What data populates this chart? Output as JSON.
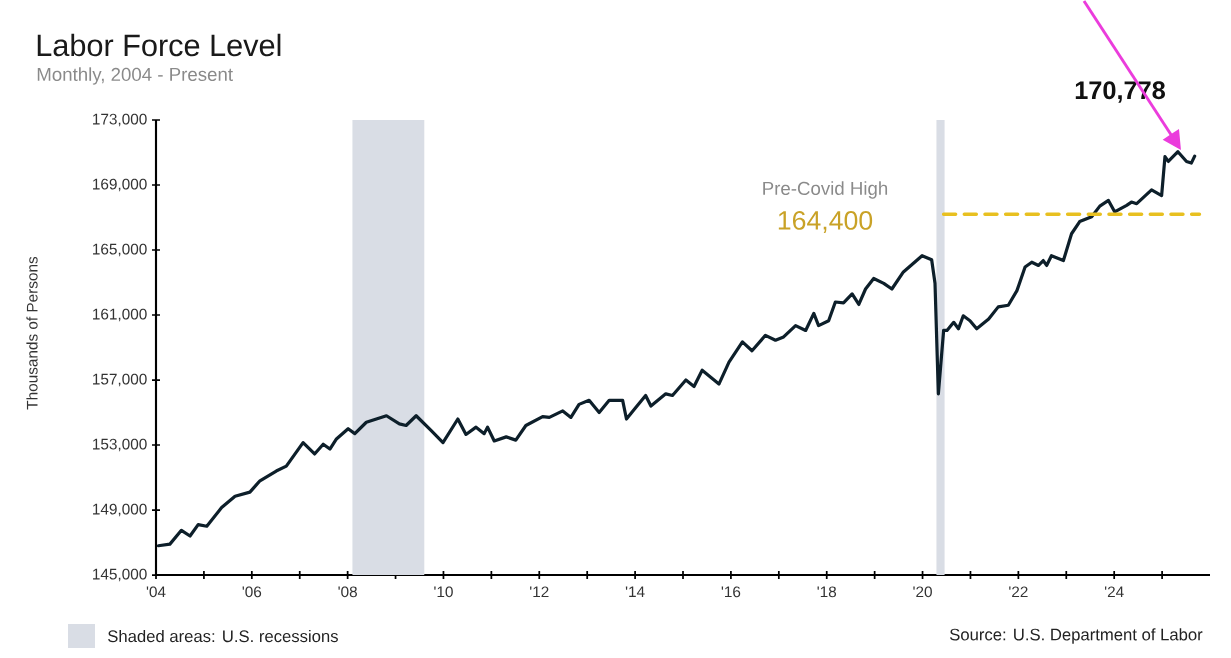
{
  "chart_data": {
    "type": "line",
    "title": "Labor Force Level",
    "subtitle": "Monthly, 2004 - Present",
    "ylabel": "Thousands of Persons",
    "xlim": [
      2004,
      2026
    ],
    "ylim": [
      145000,
      173000
    ],
    "xticks": [
      {
        "value": 2004,
        "label": "'04"
      },
      {
        "value": 2005,
        "label": null
      },
      {
        "value": 2006,
        "label": "'06"
      },
      {
        "value": 2007,
        "label": null
      },
      {
        "value": 2008,
        "label": "'08"
      },
      {
        "value": 2009,
        "label": null
      },
      {
        "value": 2010,
        "label": "'10"
      },
      {
        "value": 2011,
        "label": null
      },
      {
        "value": 2012,
        "label": "'12"
      },
      {
        "value": 2013,
        "label": null
      },
      {
        "value": 2014,
        "label": "'14"
      },
      {
        "value": 2015,
        "label": null
      },
      {
        "value": 2016,
        "label": "'16"
      },
      {
        "value": 2017,
        "label": null
      },
      {
        "value": 2018,
        "label": "'18"
      },
      {
        "value": 2019,
        "label": null
      },
      {
        "value": 2020,
        "label": "'20"
      },
      {
        "value": 2021,
        "label": null
      },
      {
        "value": 2022,
        "label": "'22"
      },
      {
        "value": 2023,
        "label": null
      },
      {
        "value": 2024,
        "label": "'24"
      },
      {
        "value": 2025,
        "label": null
      }
    ],
    "yticks": [
      {
        "value": 145000,
        "label": "145,000"
      },
      {
        "value": 149000,
        "label": "149,000"
      },
      {
        "value": 153000,
        "label": "153,000"
      },
      {
        "value": 157000,
        "label": "157,000"
      },
      {
        "value": 161000,
        "label": "161,000"
      },
      {
        "value": 165000,
        "label": "165,000"
      },
      {
        "value": 169000,
        "label": "169,000"
      },
      {
        "value": 173000,
        "label": "173,000"
      }
    ],
    "grid": false,
    "legend": "bottom left",
    "series": [
      {
        "color": "#0d1f2a",
        "line_style": "solid",
        "x": [
          2004.05,
          2004.29,
          2004.53,
          2004.71,
          2004.88,
          2005.06,
          2005.37,
          2005.65,
          2005.96,
          2006.17,
          2006.51,
          2006.72,
          2007.07,
          2007.31,
          2007.49,
          2007.63,
          2007.76,
          2008.01,
          2008.15,
          2008.39,
          2008.81,
          2009.08,
          2009.22,
          2009.43,
          2009.74,
          2009.99,
          2010.3,
          2010.47,
          2010.68,
          2010.85,
          2010.92,
          2011.06,
          2011.31,
          2011.51,
          2011.72,
          2012.07,
          2012.21,
          2012.49,
          2012.66,
          2012.83,
          2013.04,
          2013.25,
          2013.46,
          2013.74,
          2013.82,
          2014.01,
          2014.22,
          2014.33,
          2014.64,
          2014.78,
          2015.06,
          2015.23,
          2015.4,
          2015.75,
          2015.96,
          2016.24,
          2016.44,
          2016.72,
          2016.93,
          2017.1,
          2017.35,
          2017.56,
          2017.73,
          2017.83,
          2018.04,
          2018.18,
          2018.35,
          2018.53,
          2018.67,
          2018.81,
          2018.98,
          2019.19,
          2019.36,
          2019.6,
          2019.99,
          2020.19,
          2020.26,
          2020.33,
          2020.44,
          2020.51,
          2020.65,
          2020.75,
          2020.85,
          2020.99,
          2021.13,
          2021.38,
          2021.58,
          2021.79,
          2021.97,
          2022.14,
          2022.28,
          2022.42,
          2022.52,
          2022.59,
          2022.69,
          2022.94,
          2023.11,
          2023.28,
          2023.53,
          2023.7,
          2023.88,
          2024.01,
          2024.26,
          2024.36,
          2024.47,
          2024.78,
          2024.99,
          2025.06,
          2025.13,
          2025.33,
          2025.51,
          2025.61,
          2025.68
        ],
        "values": [
          146800,
          146900,
          147750,
          147400,
          148100,
          148000,
          149150,
          149850,
          150100,
          150800,
          151400,
          151700,
          153150,
          152450,
          153050,
          152750,
          153350,
          154000,
          153700,
          154400,
          154800,
          154300,
          154200,
          154800,
          153900,
          153150,
          154600,
          153650,
          154100,
          153700,
          154100,
          153250,
          153500,
          153300,
          154200,
          154750,
          154700,
          155100,
          154700,
          155500,
          155750,
          155000,
          155750,
          155750,
          154600,
          155300,
          156050,
          155400,
          156150,
          156050,
          157000,
          156600,
          157600,
          156750,
          158100,
          159350,
          158800,
          159750,
          159450,
          159650,
          160350,
          160050,
          161100,
          160350,
          160650,
          161800,
          161750,
          162300,
          161650,
          162600,
          163250,
          162950,
          162600,
          163650,
          164650,
          164400,
          162950,
          156150,
          160050,
          160050,
          160550,
          160150,
          160950,
          160650,
          160150,
          160750,
          161500,
          161600,
          162500,
          163950,
          164250,
          164050,
          164350,
          164050,
          164650,
          164350,
          166000,
          166750,
          167050,
          167700,
          168050,
          167350,
          167750,
          167950,
          167850,
          168700,
          168350,
          170750,
          170450,
          171050,
          170450,
          170350,
          170778
        ]
      },
      {
        "color": "#e8c020",
        "line_style": "dashed",
        "x": [
          2020.44,
          2025.78
        ],
        "values": [
          167200,
          167200
        ]
      }
    ],
    "bands": [
      {
        "axis": "x",
        "from": 2008.1,
        "to": 2009.6,
        "label": "Shaded areas: U.S. recessions",
        "color": "#d9dde5"
      },
      {
        "axis": "x",
        "from": 2020.29,
        "to": 2020.46,
        "color": "#d9dde5"
      }
    ],
    "annotations": [
      "Pre-Covid High",
      "164,400",
      "170,778",
      "Source: U.S. Department of Labor"
    ]
  }
}
